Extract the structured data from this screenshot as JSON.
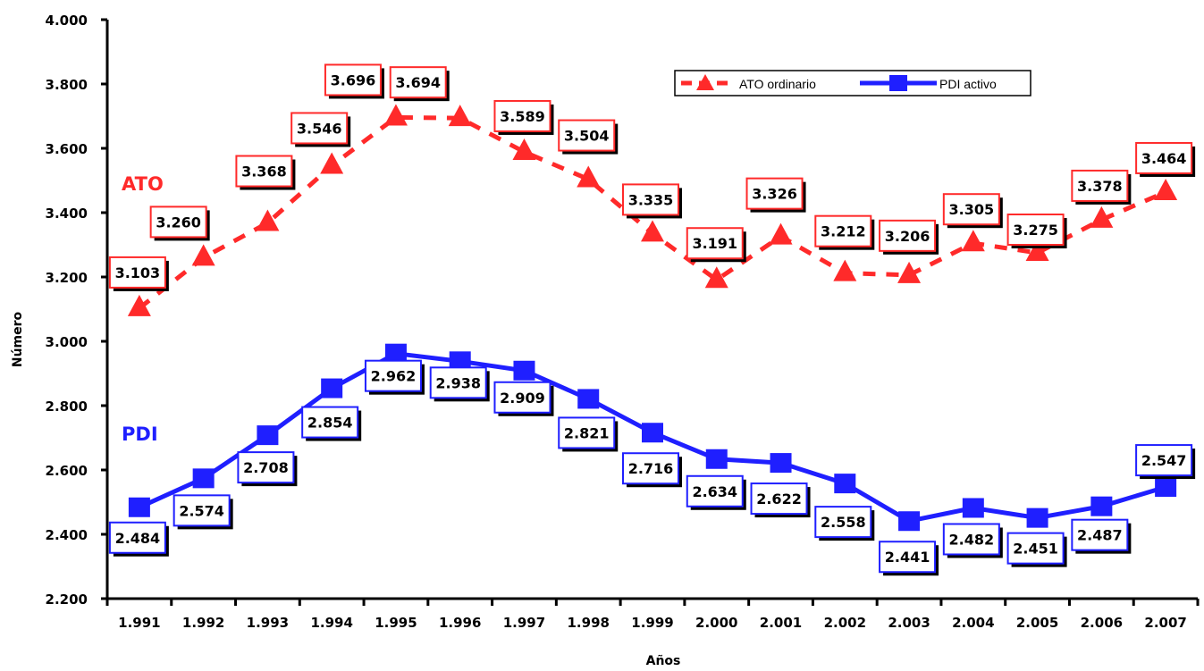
{
  "chart_data": {
    "type": "line",
    "xlabel": "Años",
    "ylabel": "Número",
    "ylim": [
      2200,
      4000
    ],
    "y_ticks": [
      2200,
      2400,
      2600,
      2800,
      3000,
      3200,
      3400,
      3600,
      3800,
      4000
    ],
    "y_tick_labels": [
      "2.200",
      "2.400",
      "2.600",
      "2.800",
      "3.000",
      "3.200",
      "3.400",
      "3.600",
      "3.800",
      "4.000"
    ],
    "categories": [
      "1.991",
      "1.992",
      "1.993",
      "1.994",
      "1.995",
      "1.996",
      "1.997",
      "1.998",
      "1.999",
      "2.000",
      "2.001",
      "2.002",
      "2.003",
      "2.004",
      "2.005",
      "2.006",
      "2.007"
    ],
    "series": [
      {
        "name": "ATO ordinario",
        "tag": "ATO",
        "color": "#ff2a2a",
        "marker": "triangle",
        "line_style": "dashed",
        "values": [
          3103,
          3260,
          3368,
          3546,
          3696,
          3694,
          3589,
          3504,
          3335,
          3191,
          3326,
          3212,
          3206,
          3305,
          3275,
          3378,
          3464
        ],
        "value_labels": [
          "3.103",
          "3.260",
          "3.368",
          "3.546",
          "3.696",
          "3.694",
          "3.589",
          "3.504",
          "3.335",
          "3.191",
          "3.326",
          "3.212",
          "3.206",
          "3.305",
          "3.275",
          "3.378",
          "3.464"
        ]
      },
      {
        "name": "PDI activo",
        "tag": "PDI",
        "color": "#1f1fff",
        "marker": "square",
        "line_style": "solid",
        "values": [
          2484,
          2574,
          2708,
          2854,
          2962,
          2938,
          2909,
          2821,
          2716,
          2634,
          2622,
          2558,
          2441,
          2482,
          2451,
          2487,
          2547
        ],
        "value_labels": [
          "2.484",
          "2.574",
          "2.708",
          "2.854",
          "2.962",
          "2.938",
          "2.909",
          "2.821",
          "2.716",
          "2.634",
          "2.622",
          "2.558",
          "2.441",
          "2.482",
          "2.451",
          "2.487",
          "2.547"
        ]
      }
    ],
    "legend": {
      "position": "top-right"
    },
    "grid": false
  }
}
